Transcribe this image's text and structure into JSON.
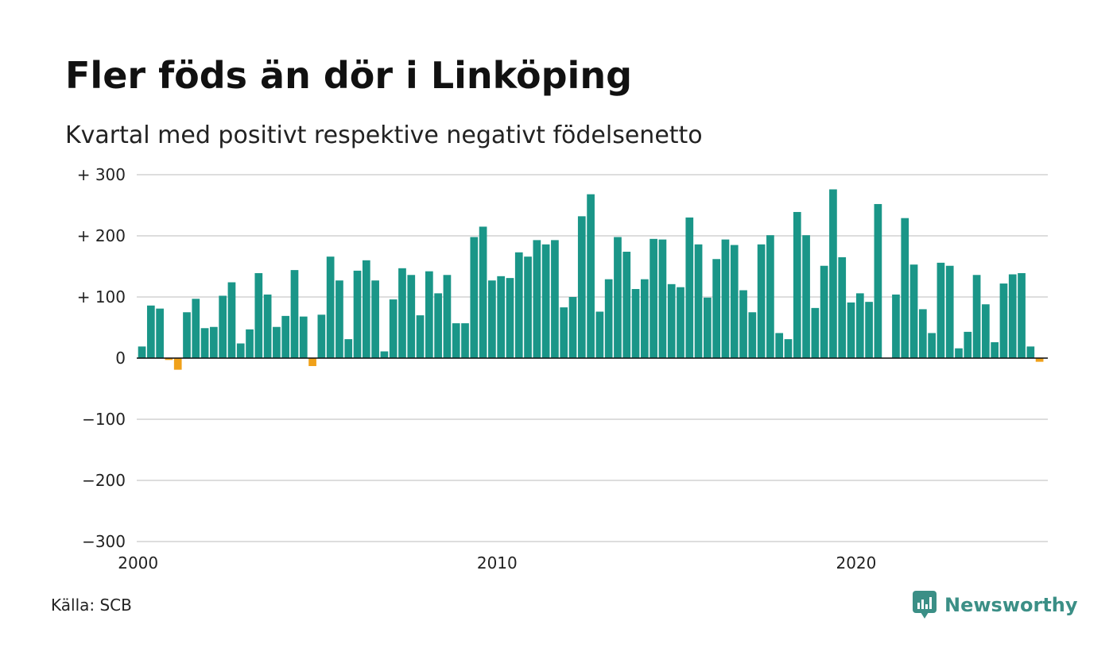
{
  "title": "Fler föds än dör i Linköping",
  "subtitle": "Kvartal med positivt respektive negativt födelsenetto",
  "source": "Källa: SCB",
  "brand": {
    "name": "Newsworthy",
    "icon": "newsworthy-logo-icon"
  },
  "colors": {
    "positive": "#1a9688",
    "negative": "#f0a11a",
    "grid": "#dddddd",
    "zero_line": "#111111",
    "brand": "#3b8f86"
  },
  "chart_data": {
    "type": "bar",
    "ylim": [
      -300,
      300
    ],
    "yticks": [
      300,
      200,
      100,
      0,
      -100,
      -200,
      -300
    ],
    "ytick_labels": [
      "+ 300",
      "+ 200",
      "+ 100",
      "0",
      "−100",
      "−200",
      "−300"
    ],
    "xticks": [
      "2000",
      "2010",
      "2020"
    ],
    "grid": true,
    "start_quarter": "2000 Q1",
    "values": [
      19,
      86,
      81,
      -3,
      -19,
      75,
      97,
      49,
      51,
      102,
      124,
      24,
      47,
      139,
      104,
      51,
      69,
      144,
      68,
      -13,
      71,
      166,
      127,
      31,
      143,
      160,
      127,
      11,
      96,
      147,
      136,
      70,
      142,
      106,
      136,
      57,
      57,
      198,
      215,
      127,
      134,
      131,
      173,
      166,
      193,
      186,
      193,
      83,
      100,
      232,
      268,
      76,
      129,
      198,
      174,
      113,
      129,
      195,
      194,
      121,
      116,
      230,
      186,
      99,
      162,
      194,
      185,
      111,
      75,
      186,
      201,
      41,
      31,
      239,
      201,
      82,
      151,
      276,
      165,
      91,
      106,
      92,
      252,
      0,
      104,
      229,
      153,
      80,
      41,
      156,
      151,
      16,
      43,
      136,
      88,
      26,
      122,
      137,
      139,
      19,
      -6
    ]
  }
}
